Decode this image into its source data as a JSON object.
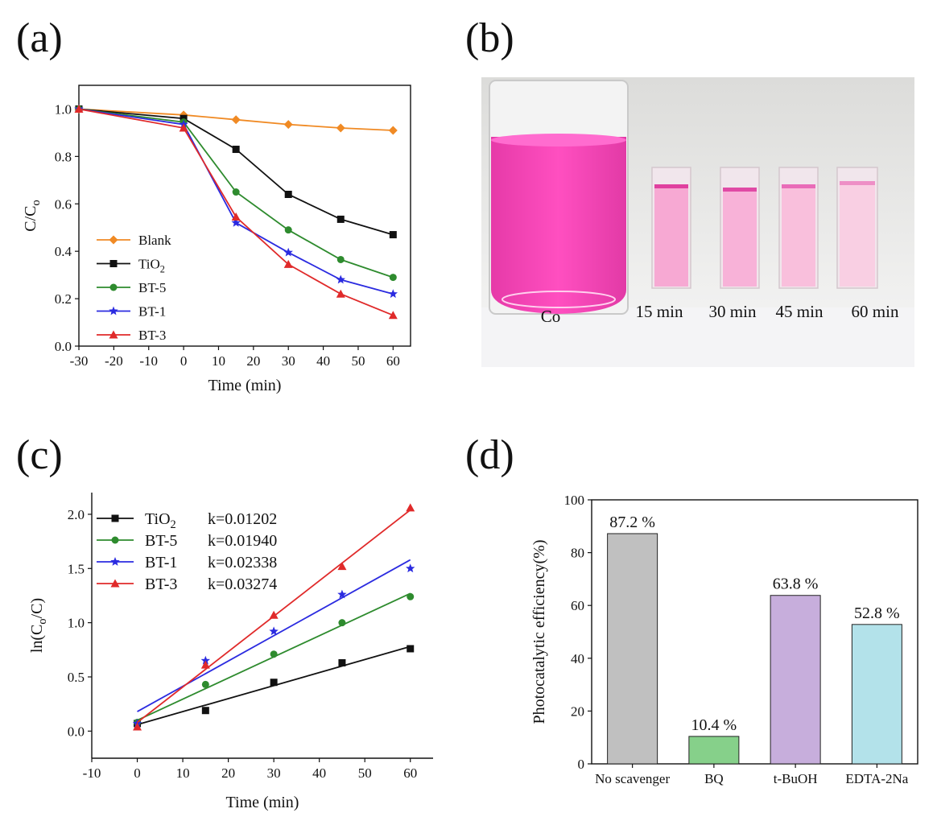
{
  "panels": {
    "a": {
      "letter": "(a)"
    },
    "b": {
      "letter": "(b)",
      "photo_labels": [
        "Co",
        "15 min",
        "30 min",
        "45 min",
        "60 min"
      ]
    },
    "c": {
      "letter": "(c)"
    },
    "d": {
      "letter": "(d)"
    }
  },
  "colors": {
    "Blank": "#f08a24",
    "TiO2": "#111111",
    "BT-5": "#2e8b2e",
    "BT-1": "#2b2be0",
    "BT-3": "#e02a2a",
    "pink": "#f040b0"
  },
  "chart_data": [
    {
      "id": "a",
      "type": "line",
      "xlabel": "Time (min)",
      "ylabel": "C/Co",
      "xlim": [
        -30,
        65
      ],
      "ylim": [
        0,
        1.1
      ],
      "xticks": [
        -30,
        -20,
        -10,
        0,
        10,
        20,
        30,
        40,
        50,
        60
      ],
      "yticks": [
        0.0,
        0.2,
        0.4,
        0.6,
        0.8,
        1.0
      ],
      "x": [
        -30,
        0,
        15,
        30,
        45,
        60
      ],
      "legend_position": "lower-left",
      "series": [
        {
          "name": "Blank",
          "marker": "diamond",
          "values": [
            1.0,
            0.975,
            0.955,
            0.935,
            0.92,
            0.91
          ]
        },
        {
          "name": "TiO2",
          "marker": "square",
          "values": [
            1.0,
            0.96,
            0.83,
            0.64,
            0.535,
            0.47
          ]
        },
        {
          "name": "BT-5",
          "marker": "circle",
          "values": [
            1.0,
            0.945,
            0.65,
            0.49,
            0.365,
            0.29
          ]
        },
        {
          "name": "BT-1",
          "marker": "star",
          "values": [
            1.0,
            0.935,
            0.52,
            0.395,
            0.28,
            0.22
          ]
        },
        {
          "name": "BT-3",
          "marker": "triangle",
          "values": [
            1.0,
            0.92,
            0.545,
            0.345,
            0.22,
            0.13
          ]
        }
      ]
    },
    {
      "id": "c",
      "type": "scatter",
      "xlabel": "Time (min)",
      "ylabel": "ln(Co/C)",
      "xlim": [
        -10,
        65
      ],
      "ylim": [
        -0.25,
        2.2
      ],
      "xticks": [
        -10,
        0,
        10,
        20,
        30,
        40,
        50,
        60
      ],
      "yticks": [
        0.0,
        0.5,
        1.0,
        1.5,
        2.0
      ],
      "x": [
        0,
        15,
        30,
        45,
        60
      ],
      "legend_position": "top-left",
      "series": [
        {
          "name": "TiO2",
          "k_label": "k=0.01202",
          "marker": "square",
          "values": [
            0.07,
            0.19,
            0.45,
            0.63,
            0.76
          ],
          "fit": [
            0.06,
            0.78
          ]
        },
        {
          "name": "BT-5",
          "k_label": "k=0.01940",
          "marker": "circle",
          "values": [
            0.08,
            0.43,
            0.71,
            1.0,
            1.24
          ],
          "fit": [
            0.1,
            1.27
          ]
        },
        {
          "name": "BT-1",
          "k_label": "k=0.02338",
          "marker": "star",
          "values": [
            0.07,
            0.65,
            0.92,
            1.26,
            1.5
          ],
          "fit": [
            0.18,
            1.58
          ]
        },
        {
          "name": "BT-3",
          "k_label": "k=0.03274",
          "marker": "triangle",
          "values": [
            0.04,
            0.61,
            1.07,
            1.52,
            2.06
          ],
          "fit": [
            0.08,
            2.04
          ]
        }
      ]
    },
    {
      "id": "d",
      "type": "bar",
      "ylabel": "Photocatalytic efficiency(%)",
      "ylim": [
        0,
        100
      ],
      "yticks": [
        0,
        20,
        40,
        60,
        80,
        100
      ],
      "categories": [
        "No scavenger",
        "BQ",
        "t-BuOH",
        "EDTA-2Na"
      ],
      "values": [
        87.2,
        10.4,
        63.8,
        52.8
      ],
      "value_labels": [
        "87.2 %",
        "10.4 %",
        "63.8 %",
        "52.8 %"
      ],
      "bar_colors": [
        "#c0c0c0",
        "#86d08a",
        "#c7aedc",
        "#b3e2ea"
      ]
    }
  ]
}
